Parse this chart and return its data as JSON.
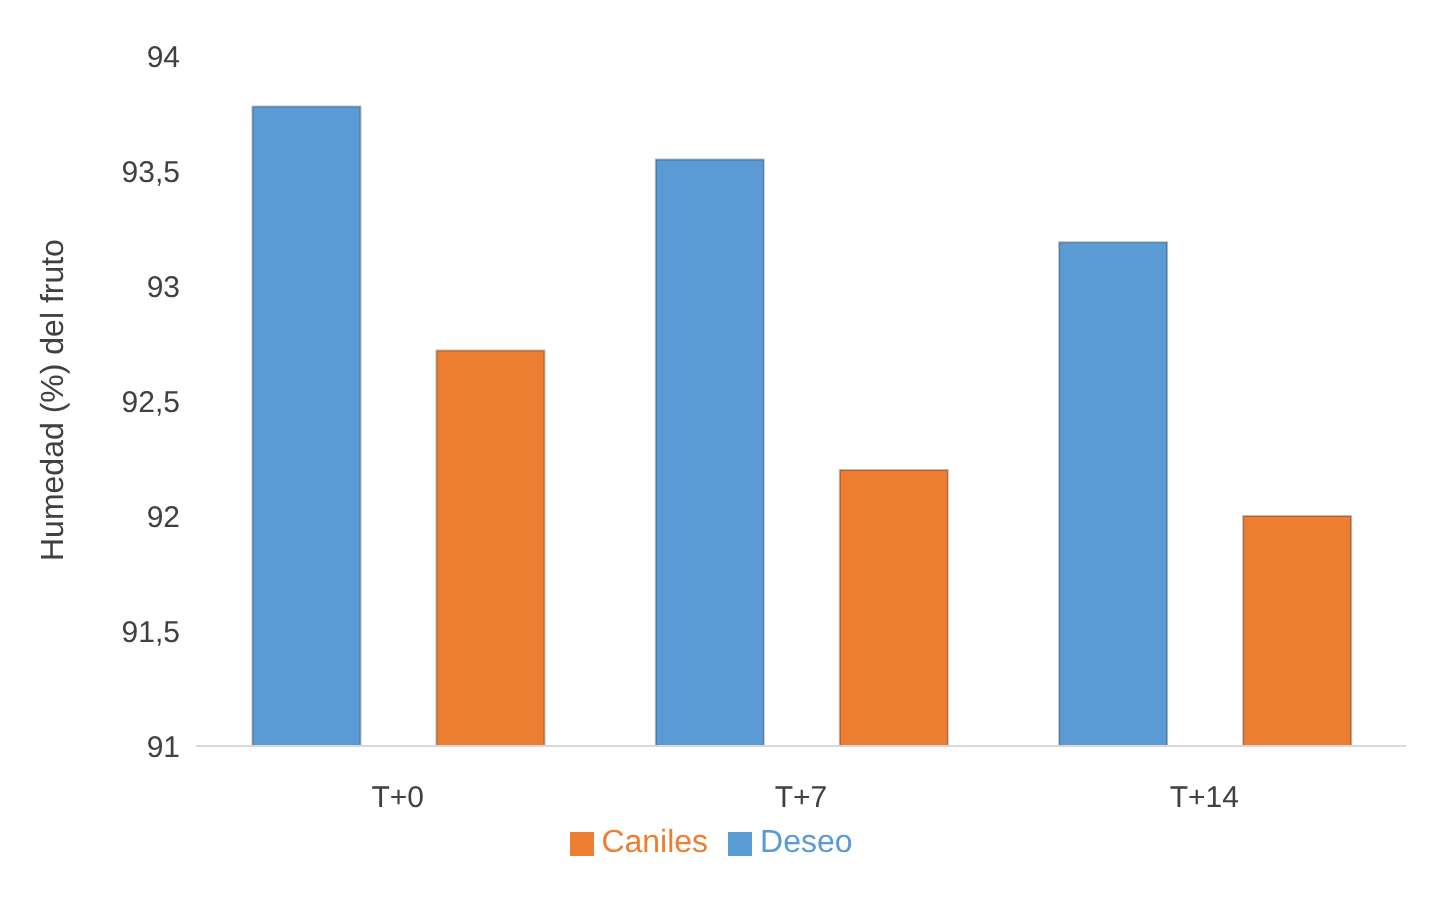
{
  "chart_data": {
    "type": "bar",
    "ylabel": "Humedad (%) del fruto",
    "categories": [
      "T+0",
      "T+7",
      "T+14"
    ],
    "series": [
      {
        "name": "Deseo",
        "color": "#5b9bd5",
        "values": [
          93.78,
          93.55,
          93.19
        ]
      },
      {
        "name": "Caniles",
        "color": "#ed7d31",
        "values": [
          92.72,
          92.2,
          92.0
        ]
      }
    ],
    "ylim": [
      91,
      94
    ],
    "yticks": [
      {
        "value": 91,
        "label": "91"
      },
      {
        "value": 91.5,
        "label": "91,5"
      },
      {
        "value": 92,
        "label": "92"
      },
      {
        "value": 92.5,
        "label": "92,5"
      },
      {
        "value": 93,
        "label": "93"
      },
      {
        "value": 93.5,
        "label": "93,5"
      },
      {
        "value": 94,
        "label": "94"
      }
    ],
    "grid": false,
    "legend": "bottom"
  }
}
